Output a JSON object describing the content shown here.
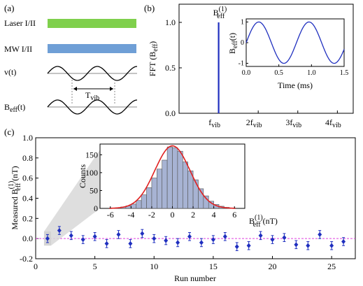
{
  "panel_labels": {
    "a": "(a)",
    "b": "(b)",
    "c": "(c)"
  },
  "schematic": {
    "laser_label": "Laser I/II",
    "mw_label": "MW I/II",
    "v_label": "v(t)",
    "beff_label": "B",
    "beff_sub": "eff",
    "beff_suffix": "(t)",
    "tvib_label": "T",
    "tvib_sub": "vib",
    "laser_color": "#7fd04c",
    "mw_color": "#6f9fd6",
    "wave_periods": 2.25
  },
  "chart_data": [
    {
      "id": "fft",
      "type": "bar",
      "ylabel_main": "FFT (B",
      "ylabel_sub": "eff",
      "ylabel_tail": ")",
      "ylim": [
        0,
        1.2
      ],
      "yticks": [
        "0.0",
        "0.5",
        "1.0"
      ],
      "ytick_values": [
        0,
        0.5,
        1.0
      ],
      "xticks": [
        {
          "pre": "",
          "main": "f",
          "sub": "vib",
          "pos": 1
        },
        {
          "pre": "2",
          "main": "f",
          "sub": "vib",
          "pos": 2
        },
        {
          "pre": "3",
          "main": "f",
          "sub": "vib",
          "pos": 3
        },
        {
          "pre": "4",
          "main": "f",
          "sub": "vib",
          "pos": 4
        }
      ],
      "xlim": [
        0,
        4.4
      ],
      "peak": {
        "x": 1,
        "value": 1.0
      },
      "peak_label": {
        "main": "B",
        "sup": "(1)",
        "sub": "eff"
      },
      "color": "#1f2fbf",
      "grid": false
    },
    {
      "id": "inset_b",
      "type": "line",
      "xlabel": "Time (ms)",
      "ylabel_main": "B",
      "ylabel_sub": "eff",
      "ylabel_tail": "(t)",
      "xlim": [
        0,
        1.5
      ],
      "ylim": [
        -1.15,
        1.15
      ],
      "xticks": [
        "0.0",
        "0.5",
        "1.0",
        "1.5"
      ],
      "xtick_values": [
        0,
        0.5,
        1.0,
        1.5
      ],
      "yticks": [
        "-1",
        "0",
        "1"
      ],
      "ytick_values": [
        -1,
        0,
        1
      ],
      "period_ms": 0.77,
      "phase_ms": 0.0,
      "color": "#1f2fbf"
    },
    {
      "id": "runs",
      "type": "scatter",
      "xlabel": "Run number",
      "ylabel_main": "Measured B",
      "ylabel_sup": "(1)",
      "ylabel_sub": "eff",
      "ylabel_tail": " (nT)",
      "xlim": [
        0,
        27
      ],
      "ylim": [
        -0.2,
        1.0
      ],
      "xticks": [
        "0",
        "5",
        "10",
        "15",
        "20",
        "25"
      ],
      "xtick_values": [
        0,
        5,
        10,
        15,
        20,
        25
      ],
      "yticks": [
        "-0.2",
        "0.0",
        "0.2",
        "0.4",
        "0.6",
        "0.8",
        "1.0"
      ],
      "ytick_values": [
        -0.2,
        0.0,
        0.2,
        0.4,
        0.6,
        0.8,
        1.0
      ],
      "x": [
        1,
        2,
        3,
        4,
        5,
        6,
        7,
        8,
        9,
        10,
        11,
        12,
        13,
        14,
        15,
        16,
        17,
        18,
        19,
        20,
        21,
        22,
        23,
        24,
        25,
        26
      ],
      "y": [
        0.0,
        0.08,
        0.03,
        -0.01,
        0.02,
        -0.05,
        0.04,
        -0.05,
        0.05,
        0.0,
        -0.02,
        -0.04,
        0.02,
        -0.04,
        -0.01,
        0.02,
        -0.08,
        -0.07,
        0.03,
        -0.01,
        0.01,
        -0.06,
        -0.07,
        0.04,
        -0.07,
        -0.03
      ],
      "err": [
        0.04,
        0.04,
        0.04,
        0.04,
        0.04,
        0.04,
        0.04,
        0.04,
        0.04,
        0.04,
        0.04,
        0.04,
        0.04,
        0.04,
        0.04,
        0.04,
        0.04,
        0.04,
        0.04,
        0.04,
        0.04,
        0.04,
        0.04,
        0.04,
        0.04,
        0.04
      ],
      "reference_line": 0.0,
      "reference_color": "#e040e0",
      "color": "#1f2fbf",
      "highlight_run": 1
    },
    {
      "id": "histogram",
      "type": "bar",
      "xlabel_main": "B",
      "xlabel_sup": "(1)",
      "xlabel_sub": "eff",
      "xlabel_tail": " (nT)",
      "ylabel": "Counts",
      "xlim": [
        -7,
        7
      ],
      "ylim": [
        0,
        180
      ],
      "xticks": [
        "-6",
        "-4",
        "-2",
        "0",
        "2",
        "4",
        "6"
      ],
      "xtick_values": [
        -6,
        -4,
        -2,
        0,
        2,
        4,
        6
      ],
      "yticks": [
        "0",
        "50",
        "100",
        "150"
      ],
      "ytick_values": [
        0,
        50,
        100,
        150
      ],
      "bin_width": 0.5,
      "bin_centers": [
        -5.75,
        -5.25,
        -4.75,
        -4.25,
        -3.75,
        -3.25,
        -2.75,
        -2.25,
        -1.75,
        -1.25,
        -0.75,
        -0.25,
        0.25,
        0.75,
        1.25,
        1.75,
        2.25,
        2.75,
        3.25,
        3.75,
        4.25,
        4.75,
        5.25,
        5.75
      ],
      "counts": [
        1,
        2,
        4,
        7,
        12,
        22,
        38,
        58,
        85,
        110,
        135,
        172,
        170,
        160,
        130,
        105,
        80,
        55,
        35,
        20,
        11,
        6,
        3,
        1
      ],
      "bar_color": "#a7b3d3",
      "fit": {
        "type": "gaussian",
        "mu": 0.0,
        "sigma": 1.7,
        "amplitude": 175
      },
      "fit_color": "#e02020"
    }
  ]
}
